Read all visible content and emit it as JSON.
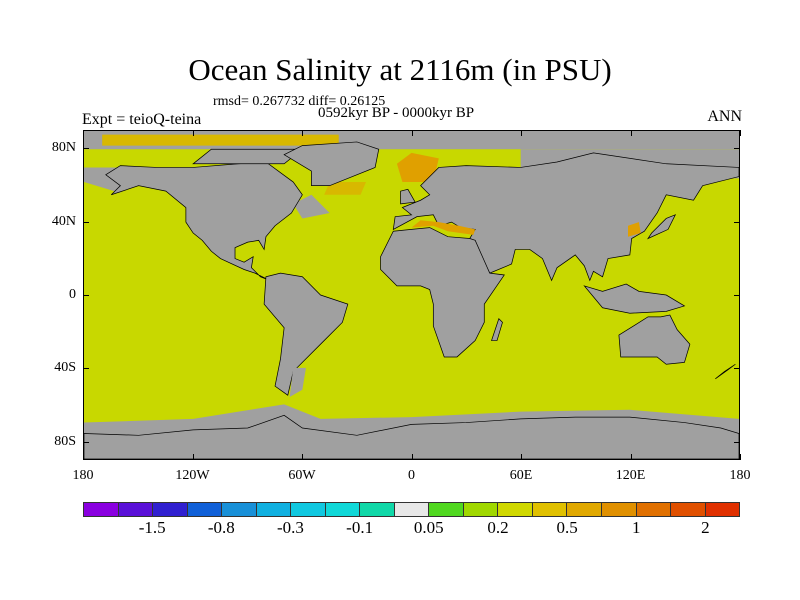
{
  "title": "Ocean Salinity at 2116m (in PSU)",
  "stats": "rmsd= 0.267732 diff= 0.26125",
  "period": "0592kyr BP - 0000kyr BP",
  "experiment": "Expt = teioQ-teina",
  "season": "ANN",
  "colors": {
    "ocean": "#c8d800",
    "land": "#a0a0a0",
    "warm1": "#d8b800",
    "warm2": "#e0a000"
  },
  "axes": {
    "lat_labels": [
      "80N",
      "40N",
      "0",
      "40S",
      "80S"
    ],
    "lat_values": [
      80,
      40,
      0,
      -40,
      -80
    ],
    "lon_labels": [
      "180",
      "120W",
      "60W",
      "0",
      "60E",
      "120E",
      "180"
    ],
    "lon_values": [
      -180,
      -120,
      -60,
      0,
      60,
      120,
      180
    ]
  },
  "colorbar": {
    "colors": [
      "#8a00e0",
      "#5a10d8",
      "#3020d0",
      "#1060d8",
      "#1890d8",
      "#10b0e0",
      "#10c8e0",
      "#10d8d8",
      "#10d8a8",
      "#e8e8e8",
      "#50d820",
      "#a0d800",
      "#d0d800",
      "#e0c000",
      "#e0a800",
      "#e09000",
      "#e07000",
      "#e05000",
      "#e03000"
    ],
    "labels": [
      "-1.5",
      "-0.8",
      "-0.3",
      "-0.1",
      "0.05",
      "0.2",
      "0.5",
      "1",
      "2"
    ],
    "label_boundaries": [
      2,
      4,
      6,
      8,
      10,
      12,
      14,
      16,
      18
    ]
  }
}
